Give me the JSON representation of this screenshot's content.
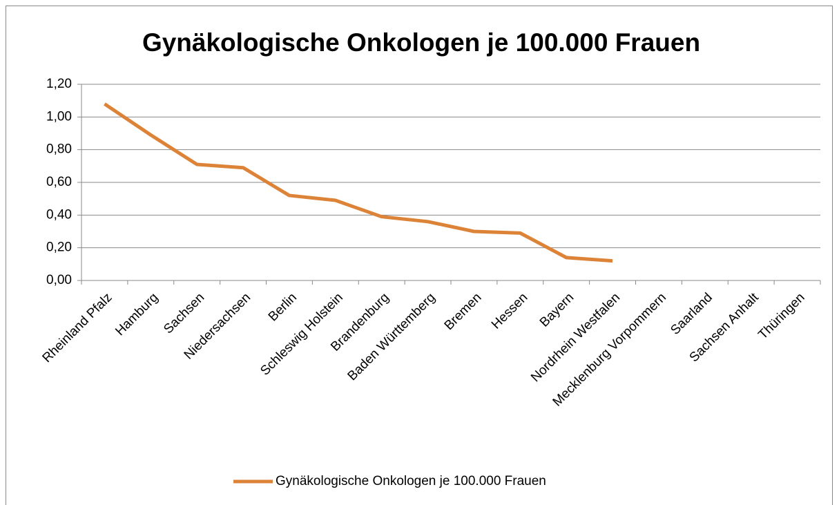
{
  "chart_data": {
    "type": "line",
    "title": "Gynäkologische Onkologen je 100.000 Frauen",
    "categories": [
      "Rheinland Pfalz",
      "Hamburg",
      "Sachsen",
      "Niedersachsen",
      "Berlin",
      "Schleswig Holstein",
      "Brandenburg",
      "Baden Württemberg",
      "Bremen",
      "Hessen",
      "Bayern",
      "Nordrhein Westfalen",
      "Mecklenburg Vorpommern",
      "Saarland",
      "Sachsen Anhalt",
      "Thüringen"
    ],
    "series": [
      {
        "name": "Gynäkologische Onkologen je 100.000 Frauen",
        "color": "#dd8338",
        "values": [
          1.08,
          0.89,
          0.71,
          0.69,
          0.52,
          0.49,
          0.39,
          0.36,
          0.3,
          0.29,
          0.14,
          0.12,
          null,
          null,
          null,
          null
        ]
      }
    ],
    "ylim": [
      0,
      1.2
    ],
    "yticks": [
      {
        "value": 0,
        "label": "0,00"
      },
      {
        "value": 0.2,
        "label": "0,20"
      },
      {
        "value": 0.4,
        "label": "0,40"
      },
      {
        "value": 0.6,
        "label": "0,60"
      },
      {
        "value": 0.8,
        "label": "0,80"
      },
      {
        "value": 1.0,
        "label": "1,00"
      },
      {
        "value": 1.2,
        "label": "1,20"
      }
    ],
    "grid": true,
    "legend": "bottom"
  }
}
